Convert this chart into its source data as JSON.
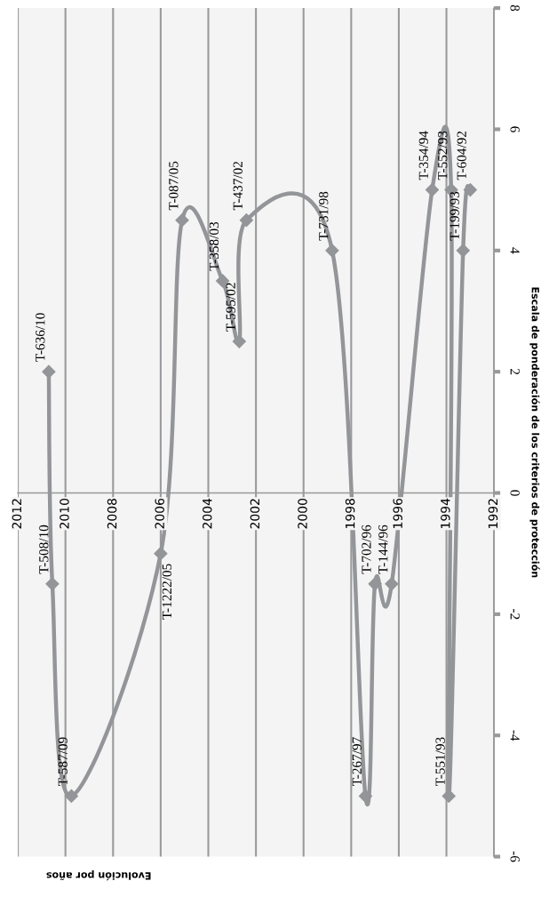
{
  "chart_data": {
    "type": "line",
    "xlabel": "Evolución por años",
    "ylabel": "Escala de ponderación de los criterios de protección",
    "x": [
      2010.7,
      2010.55,
      2009.75,
      2006.0,
      2005.1,
      2003.4,
      2002.7,
      2002.4,
      1998.8,
      1997.4,
      1997.0,
      1996.3,
      1994.6,
      1993.8,
      1993.9,
      1993.3,
      1993.0
    ],
    "series": [
      {
        "color": "#939598",
        "values": [
          2,
          -1.5,
          -5,
          -1,
          4.5,
          3.5,
          2.5,
          4.5,
          4,
          -5,
          -1.5,
          -1.5,
          5,
          5,
          -5,
          4,
          5
        ]
      }
    ],
    "xlim": [
      2012,
      1992
    ],
    "xticks": [
      1992,
      1994,
      1996,
      1998,
      2000,
      2002,
      2004,
      2006,
      2008,
      2010,
      2012
    ],
    "ylim": [
      -6,
      8
    ],
    "yticks": [
      -6,
      -4,
      -2,
      0,
      2,
      4,
      6,
      8
    ],
    "grid": "x",
    "marker": "diamond",
    "line_style": "solid",
    "annotations": [
      {
        "text": "T-636/10",
        "x": 2010.7,
        "y": 2
      },
      {
        "text": "T-508/10",
        "x": 2010.55,
        "y": -1.5
      },
      {
        "text": "T-587/09",
        "x": 2009.75,
        "y": -5
      },
      {
        "text": "T-1222/05",
        "x": 2006.0,
        "y": -1
      },
      {
        "text": "T-087/05",
        "x": 2005.1,
        "y": 4.5
      },
      {
        "text": "T-358/03",
        "x": 2003.4,
        "y": 3.5
      },
      {
        "text": "T-595/02",
        "x": 2002.7,
        "y": 2.5
      },
      {
        "text": "T-437/02",
        "x": 2002.4,
        "y": 4.5
      },
      {
        "text": "T-731/98",
        "x": 1998.8,
        "y": 4
      },
      {
        "text": "T-267/97",
        "x": 1997.4,
        "y": -5
      },
      {
        "text": "T-702/96",
        "x": 1997.0,
        "y": -1.5
      },
      {
        "text": "T-144/96",
        "x": 1996.3,
        "y": -1.5
      },
      {
        "text": "T-354/94",
        "x": 1994.6,
        "y": 5
      },
      {
        "text": "T-552/93",
        "x": 1993.8,
        "y": 5
      },
      {
        "text": "T-551/93",
        "x": 1993.9,
        "y": -5
      },
      {
        "text": "T-199/93",
        "x": 1993.3,
        "y": 4
      },
      {
        "text": "T-604/92",
        "x": 1993.0,
        "y": 5
      }
    ]
  }
}
